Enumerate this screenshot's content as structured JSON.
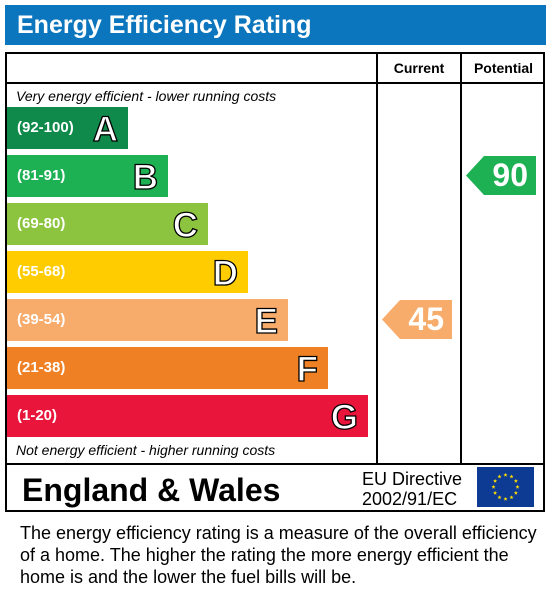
{
  "title": "Energy Efficiency Rating",
  "columns": {
    "current": "Current",
    "potential": "Potential"
  },
  "notes": {
    "top": "Very energy efficient - lower running costs",
    "bottom": "Not energy efficient - higher running costs"
  },
  "chart_data": {
    "type": "bar",
    "categories": [
      "A",
      "B",
      "C",
      "D",
      "E",
      "F",
      "G"
    ],
    "ranges": [
      "(92-100)",
      "(81-91)",
      "(69-80)",
      "(55-68)",
      "(39-54)",
      "(21-38)",
      "(1-20)"
    ],
    "colors": [
      "#0f8a4b",
      "#1db154",
      "#8cc43f",
      "#ffcc00",
      "#f7ac6b",
      "#ef8023",
      "#e9153b"
    ],
    "current": {
      "value": 45,
      "band": "E",
      "color": "#f7ac6b"
    },
    "potential": {
      "value": 90,
      "band": "B",
      "color": "#1db154"
    }
  },
  "footer": {
    "country": "England & Wales",
    "directive_line1": "EU Directive",
    "directive_line2": "2002/91/EC",
    "flag_colors": {
      "background": "#0d3b94",
      "stars": "#ffdd00"
    }
  },
  "description": "The energy efficiency rating is a measure of the overall efficiency of a home.  The higher the rating the more energy efficient the home is and the lower the fuel bills will be."
}
